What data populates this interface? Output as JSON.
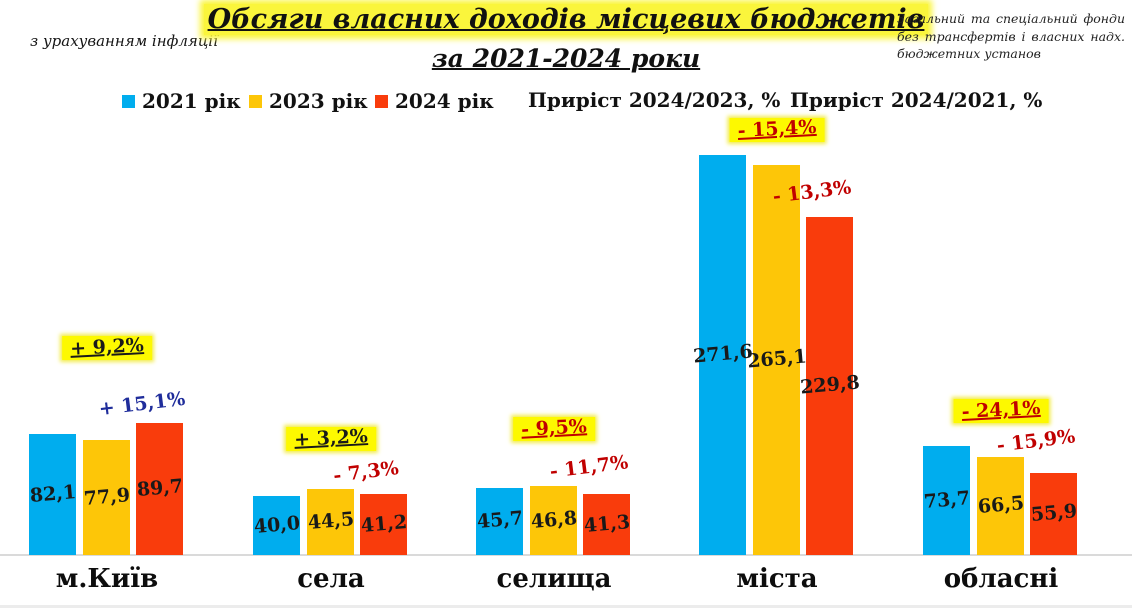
{
  "notes": {
    "left": "з урахуванням інфляції",
    "right": "Загальний та спеціальний фонди без трансфертів і власних надх. бюджетних установ"
  },
  "title": {
    "line1": "Обсяги власних доходів місцевих бюджетів",
    "line2": "за 2021-2024 роки",
    "highlight_color": "#faf53c"
  },
  "legend": {
    "items": [
      {
        "label": "2021 рік",
        "color": "#00adee"
      },
      {
        "label": "2023 рік",
        "color": "#fdc608"
      },
      {
        "label": "2024 рік",
        "color": "#f93c0c"
      }
    ],
    "growth_2024_2023_label": "Приріст 2024/2023, %",
    "growth_2024_2021_label": "Приріст 2024/2021, %"
  },
  "chart_data": {
    "type": "bar",
    "title": "Обсяги власних доходів місцевих бюджетів за 2021-2024 роки",
    "categories": [
      "м.Київ",
      "села",
      "селища",
      "міста",
      "обласні"
    ],
    "series": [
      {
        "name": "2021 рік",
        "color": "#00adee",
        "values": [
          82.1,
          40.0,
          45.7,
          271.6,
          73.7
        ],
        "labels": [
          "82,1",
          "40,0",
          "45,7",
          "271,6",
          "73,7"
        ]
      },
      {
        "name": "2023 рік",
        "color": "#fdc608",
        "values": [
          77.9,
          44.5,
          46.8,
          265.1,
          66.5
        ],
        "labels": [
          "77,9",
          "44,5",
          "46,8",
          "265,1",
          "66,5"
        ]
      },
      {
        "name": "2024 рік",
        "color": "#f93c0c",
        "values": [
          89.7,
          41.2,
          41.3,
          229.8,
          55.9
        ],
        "labels": [
          "89,7",
          "41,2",
          "41,3",
          "229,8",
          "55,9"
        ]
      }
    ],
    "annotations": {
      "growth_2024_2021_highlighted": [
        {
          "text": "+ 9,2%",
          "color": "#1a1a1a",
          "background": "#fdf900"
        },
        {
          "text": "+ 3,2%",
          "color": "#1a1a1a",
          "background": "#fdf900"
        },
        {
          "text": "- 9,5%",
          "color": "#c00000",
          "background": "#fdf900"
        },
        {
          "text": "- 15,4%",
          "color": "#c00000",
          "background": "#fdf900"
        },
        {
          "text": "- 24,1%",
          "color": "#c00000",
          "background": "#fdf900"
        }
      ],
      "growth_2024_2023_plain": [
        {
          "text": "+ 15,1%",
          "color": "#1f2d9b"
        },
        {
          "text": "- 7,3%",
          "color": "#c00000"
        },
        {
          "text": "- 11,7%",
          "color": "#c00000"
        },
        {
          "text": "- 13,3%",
          "color": "#c00000"
        },
        {
          "text": "- 15,9%",
          "color": "#c00000"
        }
      ]
    },
    "ylim": [
      0,
      285
    ],
    "grid": false,
    "legend_position": "top",
    "value_labels_inside_bars": true
  }
}
